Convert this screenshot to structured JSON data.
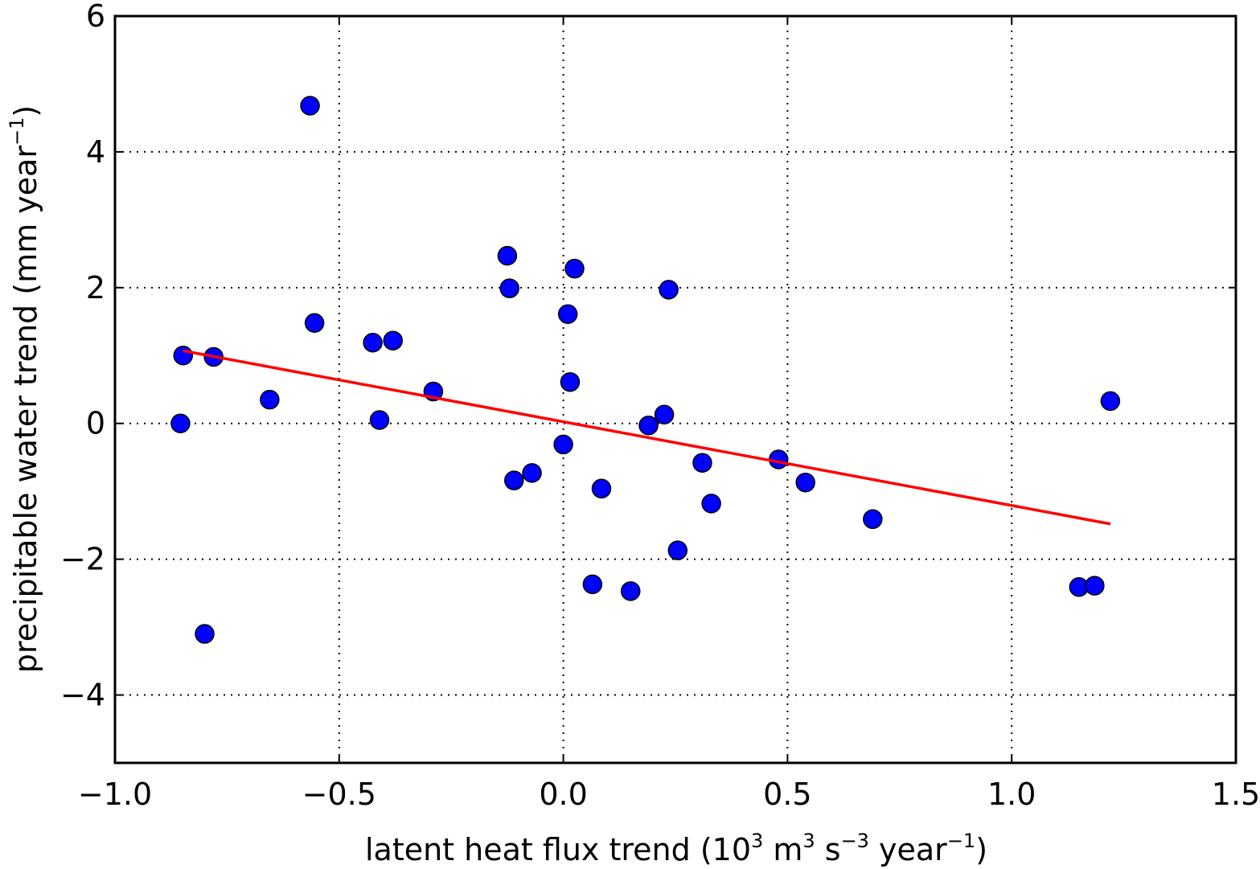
{
  "chart_data": {
    "type": "scatter",
    "title": "",
    "xlabel": {
      "prefix": "latent heat flux trend (10",
      "sup1": "3",
      "part2": "  m",
      "sup2": "3",
      "part3": "  s",
      "sup3": "−3",
      "part4": "  year",
      "sup4": "−1",
      "suffix": ")"
    },
    "ylabel": {
      "prefix": "precipitable water trend (mm year",
      "sup": "−1",
      "suffix": ")"
    },
    "xlim": [
      -1.0,
      1.5
    ],
    "ylim": [
      -5,
      6
    ],
    "xticks": [
      -1.0,
      -0.5,
      0.0,
      0.5,
      1.0,
      1.5
    ],
    "xtick_labels": [
      "−1.0",
      "−0.5",
      "0.0",
      "0.5",
      "1.0",
      "1.5"
    ],
    "yticks": [
      -4,
      -2,
      0,
      2,
      4,
      6
    ],
    "ytick_labels": [
      "−4",
      "−2",
      "0",
      "2",
      "4",
      "6"
    ],
    "grid": true,
    "colors": {
      "points": "#0000ff",
      "point_edge": "#000000",
      "fit_line": "#ff0000",
      "grid": "#000000"
    },
    "series": [
      {
        "kind": "scatter",
        "x": [
          -0.565,
          -0.848,
          -0.854,
          -0.78,
          -0.8,
          -0.655,
          -0.555,
          -0.425,
          -0.38,
          -0.41,
          -0.29,
          -0.125,
          -0.12,
          -0.11,
          -0.07,
          0.0,
          0.01,
          0.015,
          0.025,
          0.065,
          0.085,
          0.15,
          0.19,
          0.225,
          0.235,
          0.255,
          0.31,
          0.33,
          0.48,
          0.54,
          0.69,
          1.15,
          1.185,
          1.22
        ],
        "y": [
          4.68,
          1.0,
          0.0,
          0.98,
          -3.1,
          0.35,
          1.48,
          1.19,
          1.22,
          0.05,
          0.47,
          2.47,
          1.99,
          -0.84,
          -0.73,
          -0.31,
          1.61,
          0.61,
          2.28,
          -2.37,
          -0.96,
          -2.47,
          -0.03,
          0.13,
          1.97,
          -1.87,
          -0.58,
          -1.18,
          -0.53,
          -0.87,
          -1.41,
          -2.41,
          -2.39,
          0.33
        ]
      },
      {
        "kind": "line",
        "x": [
          -0.848,
          1.22
        ],
        "y": [
          1.07,
          -1.48
        ]
      }
    ]
  }
}
